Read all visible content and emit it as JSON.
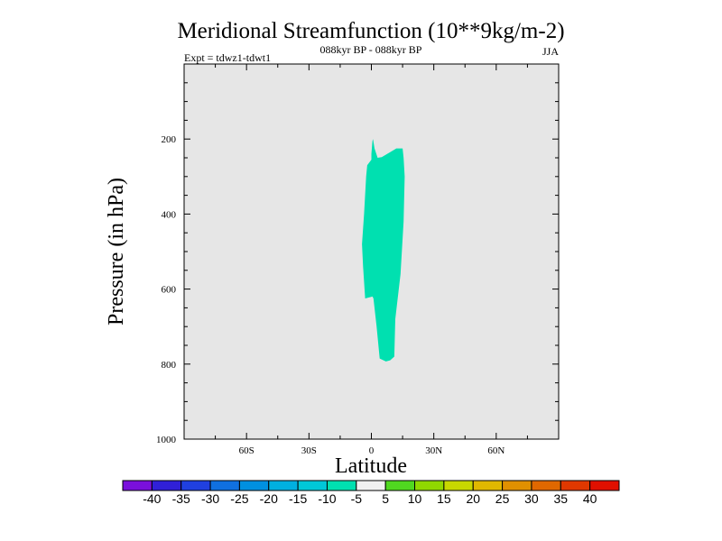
{
  "chart_data": {
    "type": "contour",
    "title": "Meridional Streamfunction (10**9kg/m-2)",
    "subtitle_center": "088kyr BP - 088kyr BP",
    "subtitle_left": "Expt = tdwz1-tdwt1",
    "subtitle_right": "JJA",
    "xlabel": "Latitude",
    "ylabel": "Pressure (in hPa)",
    "xlim": [
      -90,
      90
    ],
    "ylim": [
      1000,
      0
    ],
    "x_ticks": [
      {
        "value": -60,
        "label": "60S"
      },
      {
        "value": -30,
        "label": "30S"
      },
      {
        "value": 0,
        "label": "0"
      },
      {
        "value": 30,
        "label": "30N"
      },
      {
        "value": 60,
        "label": "60N"
      }
    ],
    "y_ticks": [
      {
        "value": 200,
        "label": "200"
      },
      {
        "value": 400,
        "label": "400"
      },
      {
        "value": 600,
        "label": "600"
      },
      {
        "value": 800,
        "label": "800"
      },
      {
        "value": 1000,
        "label": "1000"
      }
    ],
    "background_color": "#e6e6e6",
    "filled_regions": [
      {
        "range": "-10 to -5",
        "color": "#00e0b0",
        "outline": [
          [
            0.8,
            200
          ],
          [
            1.5,
            225
          ],
          [
            3,
            250
          ],
          [
            5,
            248
          ],
          [
            9,
            235
          ],
          [
            12,
            225
          ],
          [
            15,
            225
          ],
          [
            15.5,
            250
          ],
          [
            16,
            300
          ],
          [
            15.5,
            420
          ],
          [
            14,
            560
          ],
          [
            11.5,
            680
          ],
          [
            11,
            780
          ],
          [
            9,
            790
          ],
          [
            7,
            793
          ],
          [
            4,
            785
          ],
          [
            2.5,
            700
          ],
          [
            1,
            625
          ],
          [
            0.5,
            620
          ],
          [
            -3,
            625
          ],
          [
            -4,
            540
          ],
          [
            -4.5,
            480
          ],
          [
            -3.5,
            400
          ],
          [
            -2.5,
            300
          ],
          [
            -2,
            270
          ],
          [
            0,
            255
          ],
          [
            0,
            240
          ],
          [
            0.5,
            205
          ]
        ]
      }
    ],
    "colorbar": {
      "labels": [
        "-40",
        "-35",
        "-30",
        "-25",
        "-20",
        "-15",
        "-10",
        "-5",
        "5",
        "10",
        "15",
        "20",
        "25",
        "30",
        "35",
        "40"
      ],
      "colors": [
        "#7a10dc",
        "#3020d8",
        "#2040e0",
        "#1070e0",
        "#0090e0",
        "#00b0e0",
        "#00c8d8",
        "#00e0b0",
        "#f0f0f0",
        "#50d820",
        "#90d800",
        "#c8d800",
        "#e0b800",
        "#e09000",
        "#e06800",
        "#e03800",
        "#e01000"
      ]
    }
  }
}
